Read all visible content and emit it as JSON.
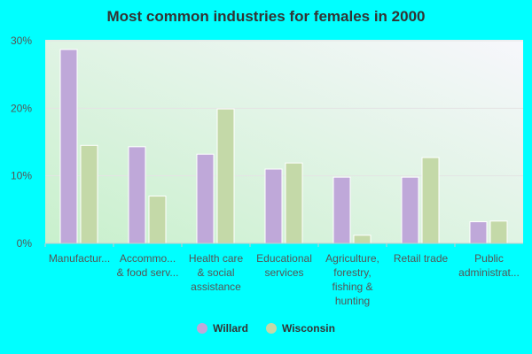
{
  "chart_data": {
    "type": "bar",
    "title": "Most common industries for females in 2000",
    "categories": [
      [
        "Manufactur..."
      ],
      [
        "Accommo...",
        "& food serv..."
      ],
      [
        "Health care",
        "& social",
        "assistance"
      ],
      [
        "Educational",
        "services"
      ],
      [
        "Agriculture,",
        "forestry,",
        "fishing &",
        "hunting"
      ],
      [
        "Retail trade"
      ],
      [
        "Public",
        "administrat..."
      ]
    ],
    "series": [
      {
        "name": "Willard",
        "color": "#bfa8d9",
        "values": [
          28.7,
          14.3,
          13.2,
          11.0,
          9.8,
          9.8,
          3.2
        ]
      },
      {
        "name": "Wisconsin",
        "color": "#c4d9a8",
        "values": [
          14.5,
          7.0,
          19.9,
          11.9,
          1.2,
          12.7,
          3.3
        ]
      }
    ],
    "yticks": [
      "0%",
      "10%",
      "20%",
      "30%"
    ],
    "ylim": [
      0,
      30
    ],
    "grid": true,
    "legend": "bottom"
  }
}
